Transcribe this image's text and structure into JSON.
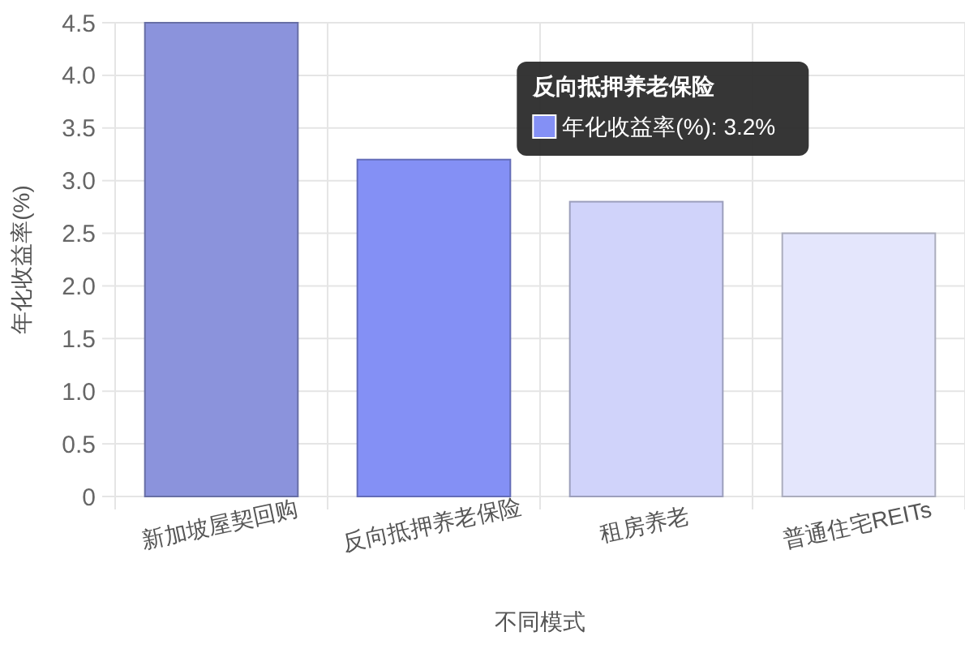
{
  "chart_data": {
    "type": "bar",
    "xlabel": "不同模式",
    "ylabel": "年化收益率(%)",
    "categories": [
      "新加坡屋契回购",
      "反向抵押养老保险",
      "租房养老",
      "普通住宅REITs"
    ],
    "values": [
      4.5,
      3.2,
      2.8,
      2.5
    ],
    "colors": [
      "#8b93dc",
      "#8490f5",
      "#d0d3fa",
      "#e4e6fc"
    ],
    "ylim": [
      0,
      4.5
    ],
    "yticks": [
      {
        "value": 0,
        "label": "0"
      },
      {
        "value": 0.5,
        "label": "0.5"
      },
      {
        "value": 1,
        "label": "1.0"
      },
      {
        "value": 1.5,
        "label": "1.5"
      },
      {
        "value": 2,
        "label": "2.0"
      },
      {
        "value": 2.5,
        "label": "2.5"
      },
      {
        "value": 3,
        "label": "3.0"
      },
      {
        "value": 3.5,
        "label": "3.5"
      },
      {
        "value": 4,
        "label": "4.0"
      },
      {
        "value": 4.5,
        "label": "4.5"
      }
    ],
    "grid": true,
    "annotations": [
      "反向抵押养老保险",
      "年化收益率(%): 3.2%"
    ]
  }
}
